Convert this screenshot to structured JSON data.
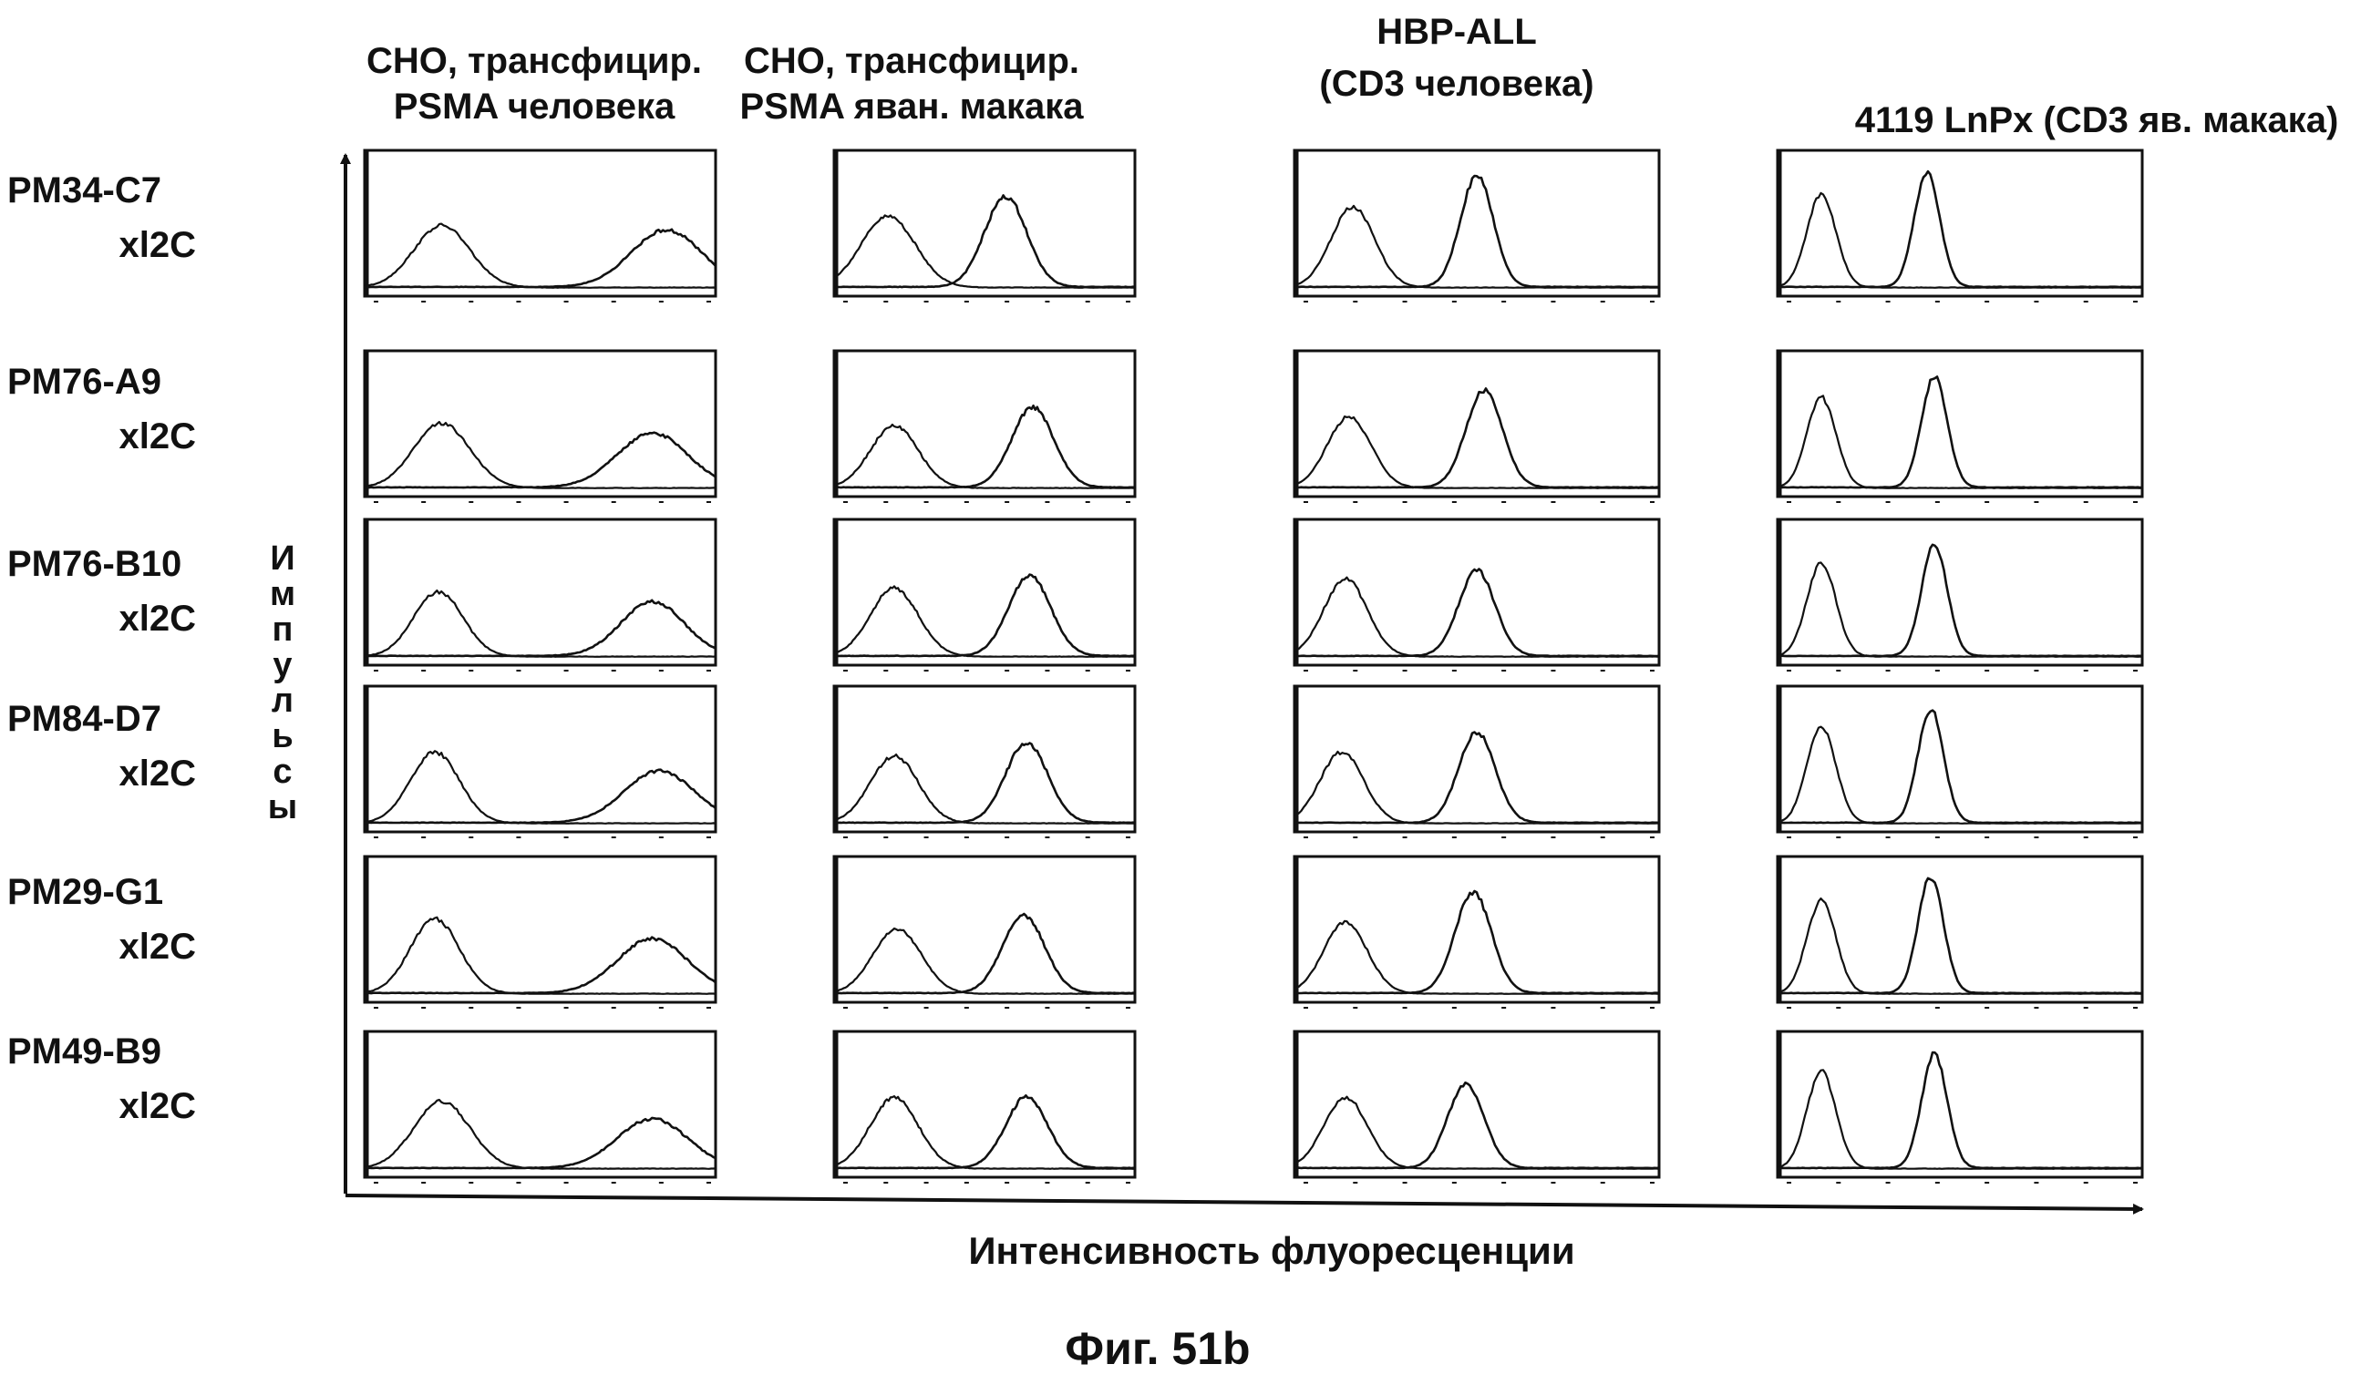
{
  "colors": {
    "ink": "#111111",
    "background": "#ffffff"
  },
  "figure": {
    "caption": "Фиг. 51b"
  },
  "chart_data": {
    "type": "histogram-grid",
    "y_axis_label": "Импульсы",
    "y_axis_letters": [
      "И",
      "м",
      "п",
      "у",
      "л",
      "ь",
      "с",
      "ы"
    ],
    "x_axis_label": "Интенсивность флуоресценции",
    "columns": [
      {
        "title_lines": [
          "CHO, трансфицир.",
          "PSMA человека"
        ]
      },
      {
        "title_lines": [
          "CHO, трансфицир.",
          "PSMA яван. макака"
        ]
      },
      {
        "title_lines": [
          "HBP-ALL",
          "(CD3 человека)"
        ]
      },
      {
        "title_lines": [
          "4119 LnPx  (CD3 яв. макака)"
        ]
      }
    ],
    "rows": [
      {
        "label_lines": [
          "PM34-C7",
          "xl2C"
        ]
      },
      {
        "label_lines": [
          "PM76-A9",
          "xl2C"
        ]
      },
      {
        "label_lines": [
          "PM76-B10",
          "xl2C"
        ]
      },
      {
        "label_lines": [
          "PM84-D7",
          "xl2C"
        ]
      },
      {
        "label_lines": [
          "PM29-G1",
          "xl2C"
        ]
      },
      {
        "label_lines": [
          "PM49-B9",
          "xl2C"
        ]
      }
    ],
    "x_range": [
      0,
      1
    ],
    "y_range": [
      0,
      1
    ],
    "series_description": "negative control histogram and stained histogram per panel",
    "panels": [
      [
        {
          "negative_peak": {
            "x": 0.22,
            "height": 0.48,
            "width": 0.08
          },
          "positive_peak": {
            "x": 0.86,
            "height": 0.44,
            "width": 0.1
          }
        },
        {
          "negative_peak": {
            "x": 0.18,
            "height": 0.55,
            "width": 0.09
          },
          "positive_peak": {
            "x": 0.57,
            "height": 0.7,
            "width": 0.07
          }
        },
        {
          "negative_peak": {
            "x": 0.16,
            "height": 0.62,
            "width": 0.06
          },
          "positive_peak": {
            "x": 0.5,
            "height": 0.86,
            "width": 0.045
          }
        },
        {
          "negative_peak": {
            "x": 0.12,
            "height": 0.72,
            "width": 0.04
          },
          "positive_peak": {
            "x": 0.41,
            "height": 0.88,
            "width": 0.035
          }
        }
      ],
      [
        {
          "negative_peak": {
            "x": 0.22,
            "height": 0.5,
            "width": 0.08
          },
          "positive_peak": {
            "x": 0.82,
            "height": 0.42,
            "width": 0.1
          }
        },
        {
          "negative_peak": {
            "x": 0.2,
            "height": 0.48,
            "width": 0.08
          },
          "positive_peak": {
            "x": 0.66,
            "height": 0.62,
            "width": 0.07
          }
        },
        {
          "negative_peak": {
            "x": 0.15,
            "height": 0.55,
            "width": 0.06
          },
          "positive_peak": {
            "x": 0.52,
            "height": 0.75,
            "width": 0.05
          }
        },
        {
          "negative_peak": {
            "x": 0.12,
            "height": 0.7,
            "width": 0.04
          },
          "positive_peak": {
            "x": 0.43,
            "height": 0.86,
            "width": 0.035
          }
        }
      ],
      [
        {
          "negative_peak": {
            "x": 0.21,
            "height": 0.5,
            "width": 0.07
          },
          "positive_peak": {
            "x": 0.82,
            "height": 0.42,
            "width": 0.09
          }
        },
        {
          "negative_peak": {
            "x": 0.2,
            "height": 0.53,
            "width": 0.08
          },
          "positive_peak": {
            "x": 0.65,
            "height": 0.62,
            "width": 0.07
          }
        },
        {
          "negative_peak": {
            "x": 0.14,
            "height": 0.6,
            "width": 0.06
          },
          "positive_peak": {
            "x": 0.5,
            "height": 0.66,
            "width": 0.05
          }
        },
        {
          "negative_peak": {
            "x": 0.12,
            "height": 0.72,
            "width": 0.04
          },
          "positive_peak": {
            "x": 0.43,
            "height": 0.86,
            "width": 0.035
          }
        }
      ],
      [
        {
          "negative_peak": {
            "x": 0.2,
            "height": 0.55,
            "width": 0.07
          },
          "positive_peak": {
            "x": 0.84,
            "height": 0.4,
            "width": 0.1
          }
        },
        {
          "negative_peak": {
            "x": 0.2,
            "height": 0.52,
            "width": 0.08
          },
          "positive_peak": {
            "x": 0.64,
            "height": 0.62,
            "width": 0.07
          }
        },
        {
          "negative_peak": {
            "x": 0.13,
            "height": 0.55,
            "width": 0.06
          },
          "positive_peak": {
            "x": 0.5,
            "height": 0.7,
            "width": 0.05
          }
        },
        {
          "negative_peak": {
            "x": 0.12,
            "height": 0.75,
            "width": 0.04
          },
          "positive_peak": {
            "x": 0.42,
            "height": 0.88,
            "width": 0.035
          }
        }
      ],
      [
        {
          "negative_peak": {
            "x": 0.2,
            "height": 0.58,
            "width": 0.07
          },
          "positive_peak": {
            "x": 0.82,
            "height": 0.42,
            "width": 0.1
          }
        },
        {
          "negative_peak": {
            "x": 0.21,
            "height": 0.5,
            "width": 0.08
          },
          "positive_peak": {
            "x": 0.63,
            "height": 0.6,
            "width": 0.07
          }
        },
        {
          "negative_peak": {
            "x": 0.14,
            "height": 0.55,
            "width": 0.06
          },
          "positive_peak": {
            "x": 0.49,
            "height": 0.78,
            "width": 0.05
          }
        },
        {
          "negative_peak": {
            "x": 0.12,
            "height": 0.72,
            "width": 0.04
          },
          "positive_peak": {
            "x": 0.42,
            "height": 0.9,
            "width": 0.035
          }
        }
      ],
      [
        {
          "negative_peak": {
            "x": 0.22,
            "height": 0.52,
            "width": 0.08
          },
          "positive_peak": {
            "x": 0.82,
            "height": 0.38,
            "width": 0.1
          }
        },
        {
          "negative_peak": {
            "x": 0.2,
            "height": 0.55,
            "width": 0.08
          },
          "positive_peak": {
            "x": 0.64,
            "height": 0.55,
            "width": 0.07
          }
        },
        {
          "negative_peak": {
            "x": 0.14,
            "height": 0.55,
            "width": 0.06
          },
          "positive_peak": {
            "x": 0.47,
            "height": 0.65,
            "width": 0.05
          }
        },
        {
          "negative_peak": {
            "x": 0.12,
            "height": 0.75,
            "width": 0.04
          },
          "positive_peak": {
            "x": 0.43,
            "height": 0.88,
            "width": 0.035
          }
        }
      ]
    ]
  }
}
